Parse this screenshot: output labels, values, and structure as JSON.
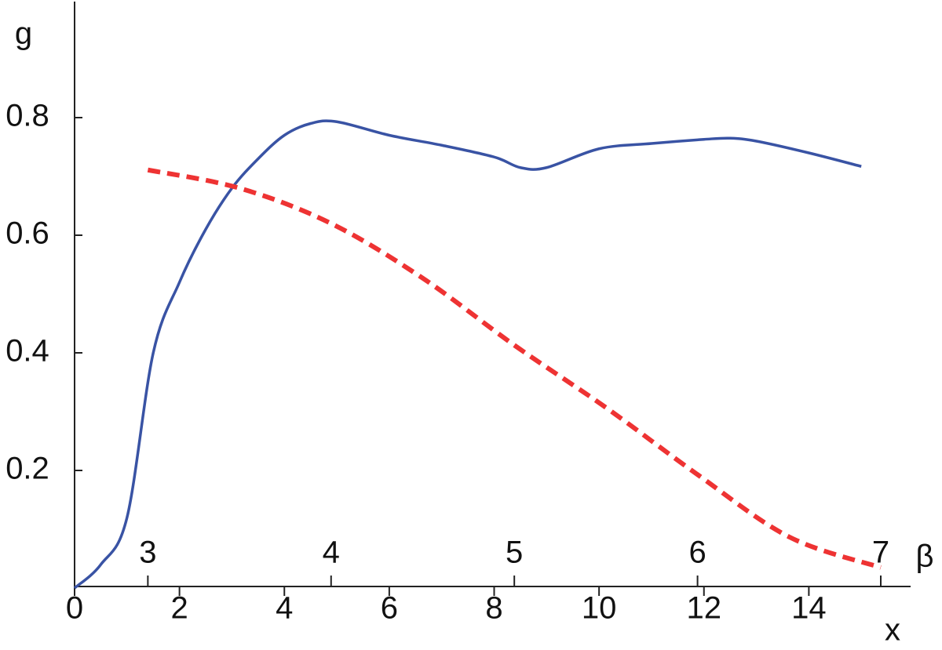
{
  "chart_data": {
    "type": "line",
    "xlabel": "x",
    "ylabel": "g",
    "x2label": "β",
    "xlim": [
      0,
      16
    ],
    "xticks": [
      0,
      2,
      4,
      6,
      8,
      10,
      12,
      14
    ],
    "x2lim": [
      2.6,
      7.18
    ],
    "x2ticks": [
      3,
      4,
      5,
      6,
      7
    ],
    "ylim": [
      0,
      1
    ],
    "yticks": [
      0.2,
      0.4,
      0.6,
      0.8
    ],
    "series": [
      {
        "color": "#3953a4",
        "style": "solid",
        "x": [
          0,
          0.5,
          1,
          1.5,
          2,
          2.5,
          3,
          3.5,
          4,
          4.5,
          5,
          6,
          7,
          8,
          8.5,
          9,
          10,
          11,
          12,
          12.5,
          13,
          14,
          15
        ],
        "values": [
          0,
          0.04,
          0.12,
          0.4,
          0.52,
          0.61,
          0.68,
          0.73,
          0.77,
          0.79,
          0.793,
          0.77,
          0.753,
          0.733,
          0.715,
          0.715,
          0.747,
          0.756,
          0.763,
          0.765,
          0.76,
          0.74,
          0.717
        ]
      },
      {
        "color": "#ee3333",
        "style": "dashed",
        "axis": "x2",
        "x": [
          3,
          3.5,
          4,
          4.5,
          5,
          5.5,
          6,
          6.5,
          7
        ],
        "values": [
          0.711,
          0.68,
          0.62,
          0.527,
          0.413,
          0.307,
          0.193,
          0.087,
          0.035
        ]
      }
    ]
  }
}
